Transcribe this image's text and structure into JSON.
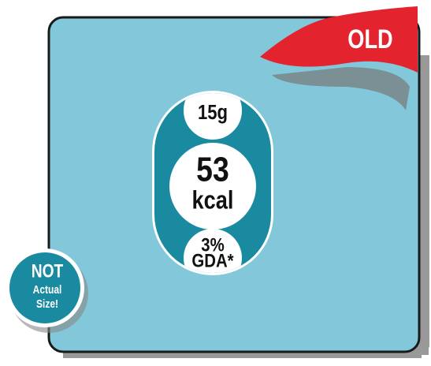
{
  "badge": {
    "corner": "OLD"
  },
  "label": {
    "fat": "15g",
    "energy_value": "53",
    "energy_unit": "kcal",
    "gda_value": "3%",
    "gda_unit": "GDA*"
  },
  "note": {
    "line1": "NOT",
    "line2": "Actual",
    "line3": "Size!"
  }
}
